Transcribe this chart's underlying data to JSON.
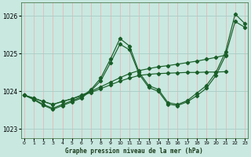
{
  "title": "Graphe pression niveau de la mer (hPa)",
  "bg_color": "#c8e8e0",
  "grid_color_v": "#e8b8b8",
  "grid_color_h": "#a8ccc4",
  "line_color": "#1a5e28",
  "xlim": [
    -0.3,
    23.3
  ],
  "ylim": [
    1022.75,
    1026.35
  ],
  "yticks": [
    1023,
    1024,
    1025,
    1026
  ],
  "xticks": [
    0,
    1,
    2,
    3,
    4,
    5,
    6,
    7,
    8,
    9,
    10,
    11,
    12,
    13,
    14,
    15,
    16,
    17,
    18,
    19,
    20,
    21,
    22,
    23
  ],
  "series": [
    {
      "x": [
        0,
        1,
        2,
        3,
        4,
        5,
        6,
        7,
        8,
        9,
        10,
        11,
        12,
        13,
        14,
        15,
        16,
        17,
        18,
        19,
        20,
        21,
        22,
        23
      ],
      "y": [
        1023.9,
        1023.8,
        1023.65,
        1023.55,
        1023.65,
        1023.75,
        1023.85,
        1024.05,
        1024.35,
        1024.85,
        1025.4,
        1025.2,
        1024.5,
        1024.15,
        1024.05,
        1023.7,
        1023.65,
        1023.75,
        1023.95,
        1024.15,
        1024.5,
        1025.05,
        1026.05,
        1025.8
      ]
    },
    {
      "x": [
        0,
        1,
        2,
        3,
        4,
        5,
        6,
        7,
        8,
        9,
        10,
        11,
        12,
        13,
        14,
        15,
        16,
        17,
        18,
        19,
        20,
        21,
        22,
        23
      ],
      "y": [
        1023.9,
        1023.78,
        1023.63,
        1023.52,
        1023.62,
        1023.72,
        1023.82,
        1024.02,
        1024.28,
        1024.75,
        1025.25,
        1025.1,
        1024.45,
        1024.1,
        1024.0,
        1023.66,
        1023.62,
        1023.72,
        1023.88,
        1024.08,
        1024.42,
        1024.95,
        1025.85,
        1025.7
      ]
    },
    {
      "x": [
        0,
        1,
        2,
        3,
        4,
        5,
        6,
        7,
        8,
        9,
        10,
        11,
        12,
        13,
        14,
        15,
        16,
        17,
        18,
        19,
        20,
        21
      ],
      "y": [
        1023.9,
        1023.82,
        1023.73,
        1023.65,
        1023.73,
        1023.8,
        1023.88,
        1023.97,
        1024.07,
        1024.17,
        1024.27,
        1024.35,
        1024.42,
        1024.45,
        1024.47,
        1024.48,
        1024.49,
        1024.5,
        1024.5,
        1024.51,
        1024.51,
        1024.52
      ]
    },
    {
      "x": [
        0,
        1,
        2,
        3,
        4,
        5,
        6,
        7,
        8,
        9,
        10,
        11,
        12,
        13,
        14,
        15,
        16,
        17,
        18,
        19,
        20,
        21
      ],
      "y": [
        1023.9,
        1023.82,
        1023.73,
        1023.65,
        1023.73,
        1023.8,
        1023.9,
        1024.0,
        1024.12,
        1024.24,
        1024.36,
        1024.47,
        1024.55,
        1024.6,
        1024.65,
        1024.68,
        1024.72,
        1024.76,
        1024.8,
        1024.85,
        1024.9,
        1024.96
      ]
    }
  ]
}
